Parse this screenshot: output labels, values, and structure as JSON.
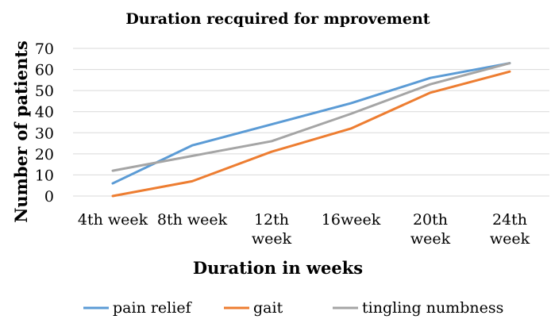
{
  "chart_data": {
    "type": "line",
    "title": "Duration recquired for mprovement",
    "xlabel": "Duration in weeks",
    "ylabel": "Number of patients",
    "categories": [
      [
        "4th week"
      ],
      [
        "8th week"
      ],
      [
        "12th",
        "week"
      ],
      [
        "16week"
      ],
      [
        "20th",
        "week"
      ],
      [
        "24th",
        "week"
      ]
    ],
    "ylim": [
      0,
      70
    ],
    "yticks": [
      0,
      10,
      20,
      30,
      40,
      50,
      60,
      70
    ],
    "grid": true,
    "legend_position": "bottom",
    "series": [
      {
        "name": "pain relief",
        "color": "#5b9bd5",
        "values": [
          6,
          24,
          34,
          44,
          56,
          63
        ]
      },
      {
        "name": "gait",
        "color": "#ed7d31",
        "values": [
          0,
          7,
          21,
          32,
          49,
          59
        ]
      },
      {
        "name": "tingling numbness",
        "color": "#a5a5a5",
        "values": [
          12,
          19,
          26,
          39,
          53,
          63
        ]
      }
    ]
  }
}
